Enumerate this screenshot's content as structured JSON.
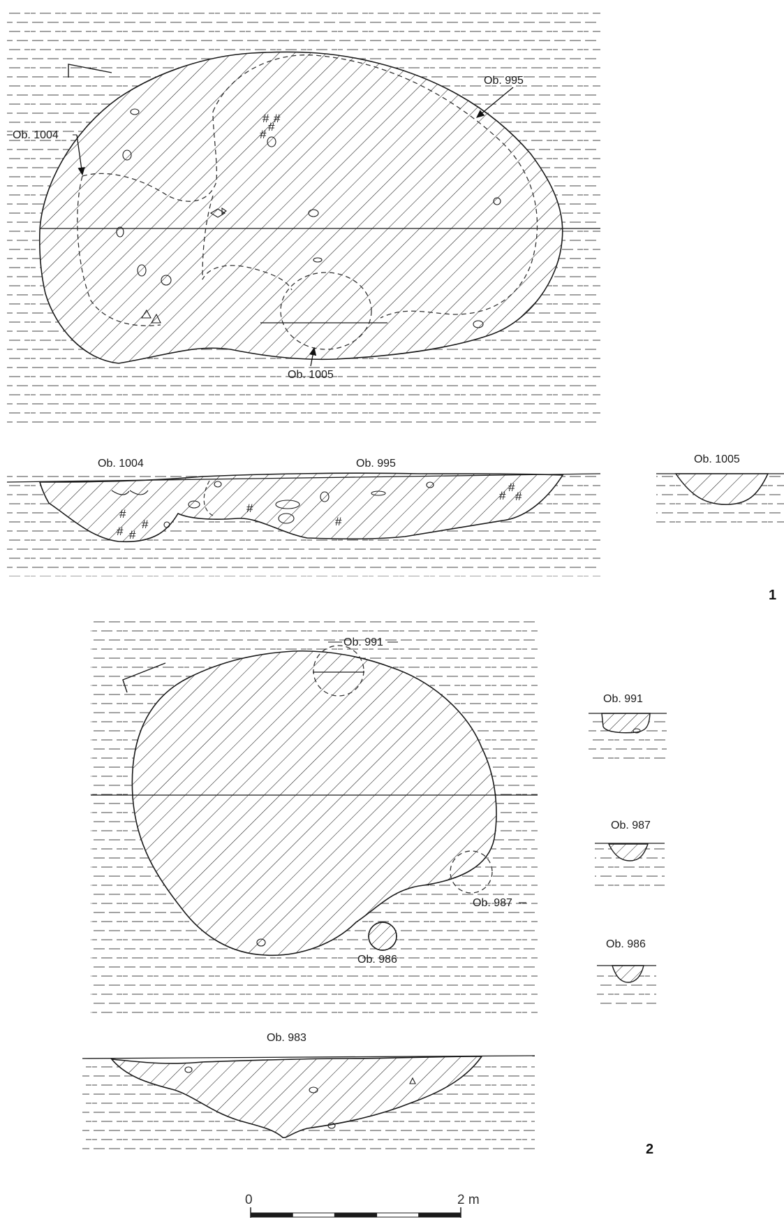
{
  "panels": {
    "one": "1",
    "two": "2"
  },
  "figure1": {
    "plan_labels": {
      "ob1004": "Ob. 1004",
      "ob995": "Ob. 995",
      "ob1005": "Ob. 1005"
    },
    "section_labels": {
      "ob1004": "Ob. 1004",
      "ob995": "Ob. 995",
      "ob1005": "Ob. 1005"
    }
  },
  "figure2": {
    "plan_labels": {
      "ob991": "Ob. 991",
      "ob987": "Ob. 987",
      "ob986": "Ob. 986"
    },
    "section_labels": {
      "ob983": "Ob. 983",
      "ob991": "Ob. 991",
      "ob987": "Ob. 987",
      "ob986": "Ob. 986"
    }
  },
  "scale": {
    "start_label": "0",
    "end_label": "2 m",
    "length_m": 2,
    "segments": 5
  },
  "colors": {
    "ink": "#1a1a1a",
    "background": "#ffffff"
  }
}
